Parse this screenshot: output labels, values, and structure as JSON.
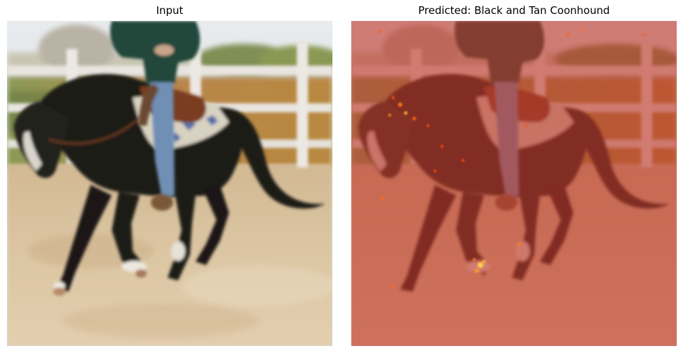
{
  "panels": [
    {
      "title": "Input"
    },
    {
      "title": "Predicted: Black and Tan Coonhound"
    }
  ],
  "colors": {
    "sky": "#e6e9ec",
    "fence": "#e8e4df",
    "sand": "#d9c3a0",
    "horse": "#1d1c17",
    "jacket": "#24473a",
    "jeans": "#6f8fb4",
    "saddle_pad": "#d8d2c2",
    "saddle": "#7a3e22",
    "heatmap_overlay": "#c0392b"
  }
}
